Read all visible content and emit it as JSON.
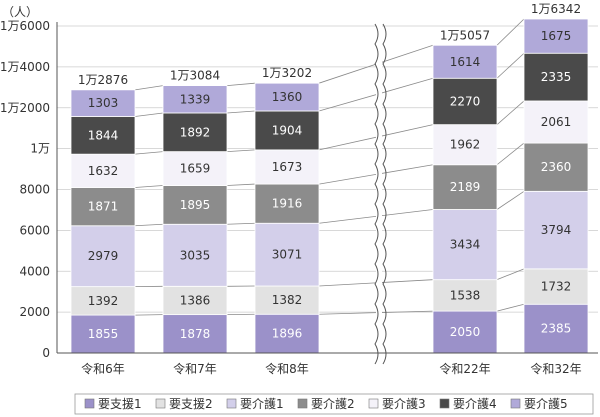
{
  "chart_data": {
    "type": "bar",
    "stacked": true,
    "y_unit": "（人）",
    "ylim": [
      0,
      16000
    ],
    "yticks": [
      {
        "value": 0,
        "label": "0"
      },
      {
        "value": 2000,
        "label": "2000"
      },
      {
        "value": 4000,
        "label": "4000"
      },
      {
        "value": 6000,
        "label": "6000"
      },
      {
        "value": 8000,
        "label": "8000"
      },
      {
        "value": 10000,
        "label": "1万"
      },
      {
        "value": 12000,
        "label": "1万2000"
      },
      {
        "value": 14000,
        "label": "1万4000"
      },
      {
        "value": 16000,
        "label": "1万6000"
      }
    ],
    "categories": [
      "令和6年",
      "令和7年",
      "令和8年",
      "令和22年",
      "令和32年"
    ],
    "totals": [
      "1万2876",
      "1万3084",
      "1万3202",
      "1万5057",
      "1万6342"
    ],
    "axis_break_after_index": 2,
    "series": [
      {
        "name": "要支援1",
        "color": "#9b91c9",
        "label_color": "#ffffff",
        "values": [
          1855,
          1878,
          1896,
          2050,
          2385
        ]
      },
      {
        "name": "要支援2",
        "color": "#e2e2e2",
        "label_color": "#333333",
        "values": [
          1392,
          1386,
          1382,
          1538,
          1732
        ]
      },
      {
        "name": "要介護1",
        "color": "#d3cfea",
        "label_color": "#333333",
        "values": [
          2979,
          3035,
          3071,
          3434,
          3794
        ]
      },
      {
        "name": "要介護2",
        "color": "#8c8c8c",
        "label_color": "#ffffff",
        "values": [
          1871,
          1895,
          1916,
          2189,
          2360
        ]
      },
      {
        "name": "要介護3",
        "color": "#f4f2f9",
        "label_color": "#333333",
        "values": [
          1632,
          1659,
          1673,
          1962,
          2061
        ]
      },
      {
        "name": "要介護4",
        "color": "#4a4a4a",
        "label_color": "#ffffff",
        "values": [
          1844,
          1892,
          1904,
          2270,
          2335
        ]
      },
      {
        "name": "要介護5",
        "color": "#b0a9d9",
        "label_color": "#333333",
        "values": [
          1303,
          1339,
          1360,
          1614,
          1675
        ]
      }
    ]
  }
}
